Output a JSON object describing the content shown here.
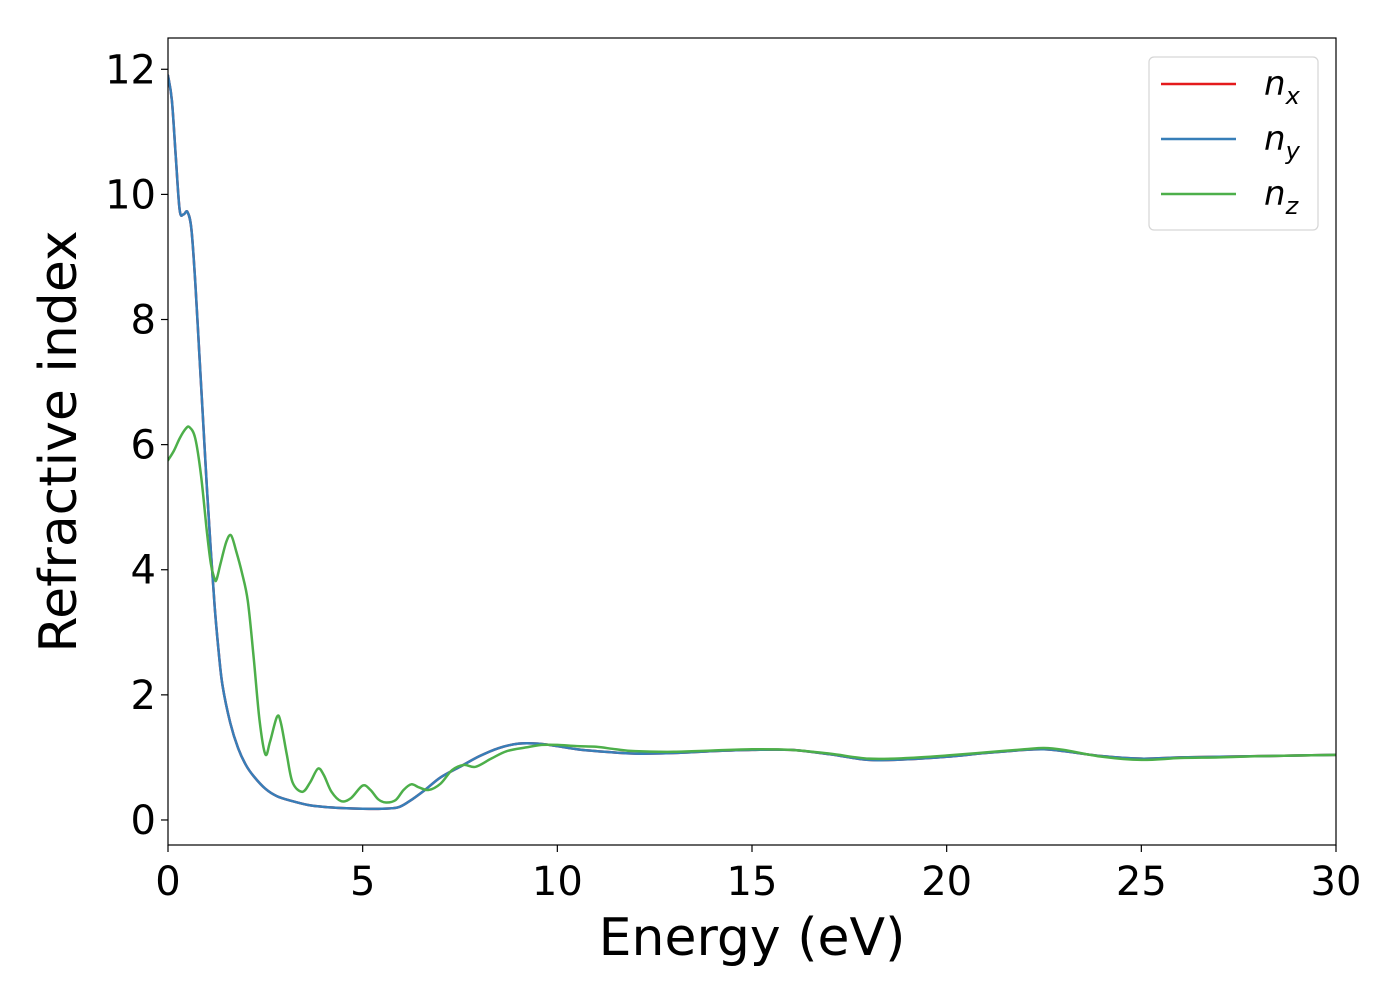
{
  "chart_data": {
    "type": "line",
    "xlabel": "Energy (eV)",
    "ylabel": "Refractive index",
    "xlim": [
      0,
      30
    ],
    "ylim": [
      -0.4,
      12.5
    ],
    "xticks": [
      0,
      5,
      10,
      15,
      20,
      25,
      30
    ],
    "xtick_labels": [
      "0",
      "5",
      "10",
      "15",
      "20",
      "25",
      "30"
    ],
    "yticks": [
      0,
      2,
      4,
      6,
      8,
      10,
      12
    ],
    "ytick_labels": [
      "0",
      "2",
      "4",
      "6",
      "8",
      "10",
      "12"
    ],
    "grid": false,
    "legend": {
      "placement": "top-right"
    },
    "series": [
      {
        "name": "n_x",
        "label_base": "n",
        "label_sub": "x",
        "color": "#e41a1c",
        "x": [
          0,
          0.1,
          0.2,
          0.3,
          0.4,
          0.5,
          0.6,
          0.7,
          0.8,
          0.9,
          1.0,
          1.1,
          1.2,
          1.3,
          1.4,
          1.6,
          1.8,
          2.0,
          2.2,
          2.5,
          2.8,
          3.2,
          3.6,
          4.0,
          4.5,
          5.0,
          5.5,
          5.9,
          6.2,
          6.6,
          7.0,
          7.5,
          8.0,
          8.5,
          9.0,
          9.5,
          10,
          10.5,
          11,
          12,
          13,
          14,
          15,
          16,
          17,
          18,
          19,
          20,
          21,
          22,
          22.5,
          23,
          24,
          25,
          26,
          27,
          28,
          29,
          30
        ],
        "values": [
          11.9,
          11.5,
          10.6,
          9.75,
          9.68,
          9.72,
          9.45,
          8.6,
          7.5,
          6.4,
          5.3,
          4.3,
          3.4,
          2.7,
          2.15,
          1.55,
          1.15,
          0.88,
          0.7,
          0.5,
          0.38,
          0.3,
          0.24,
          0.21,
          0.19,
          0.18,
          0.18,
          0.2,
          0.3,
          0.48,
          0.68,
          0.85,
          1.02,
          1.15,
          1.22,
          1.22,
          1.18,
          1.13,
          1.1,
          1.06,
          1.07,
          1.1,
          1.12,
          1.12,
          1.05,
          0.96,
          0.97,
          1.01,
          1.07,
          1.12,
          1.13,
          1.1,
          1.02,
          0.98,
          1.0,
          1.01,
          1.02,
          1.03,
          1.04
        ]
      },
      {
        "name": "n_y",
        "label_base": "n",
        "label_sub": "y",
        "color": "#377eb8",
        "x": [
          0,
          0.1,
          0.2,
          0.3,
          0.4,
          0.5,
          0.6,
          0.7,
          0.8,
          0.9,
          1.0,
          1.1,
          1.2,
          1.3,
          1.4,
          1.6,
          1.8,
          2.0,
          2.2,
          2.5,
          2.8,
          3.2,
          3.6,
          4.0,
          4.5,
          5.0,
          5.5,
          5.9,
          6.2,
          6.6,
          7.0,
          7.5,
          8.0,
          8.5,
          9.0,
          9.5,
          10,
          10.5,
          11,
          12,
          13,
          14,
          15,
          16,
          17,
          18,
          19,
          20,
          21,
          22,
          22.5,
          23,
          24,
          25,
          26,
          27,
          28,
          29,
          30
        ],
        "values": [
          11.9,
          11.5,
          10.6,
          9.75,
          9.68,
          9.72,
          9.45,
          8.6,
          7.5,
          6.4,
          5.3,
          4.3,
          3.4,
          2.7,
          2.15,
          1.55,
          1.15,
          0.88,
          0.7,
          0.5,
          0.38,
          0.3,
          0.24,
          0.21,
          0.19,
          0.18,
          0.18,
          0.2,
          0.3,
          0.48,
          0.68,
          0.85,
          1.02,
          1.15,
          1.22,
          1.22,
          1.18,
          1.13,
          1.1,
          1.06,
          1.07,
          1.1,
          1.12,
          1.12,
          1.05,
          0.96,
          0.97,
          1.01,
          1.07,
          1.12,
          1.13,
          1.1,
          1.02,
          0.98,
          1.0,
          1.01,
          1.02,
          1.03,
          1.04
        ]
      },
      {
        "name": "n_z",
        "label_base": "n",
        "label_sub": "z",
        "color": "#4daf4a",
        "x": [
          0,
          0.15,
          0.3,
          0.45,
          0.55,
          0.7,
          0.85,
          1.0,
          1.1,
          1.2,
          1.25,
          1.35,
          1.5,
          1.62,
          1.75,
          1.9,
          2.05,
          2.2,
          2.35,
          2.5,
          2.62,
          2.8,
          2.9,
          3.05,
          3.2,
          3.45,
          3.65,
          3.85,
          4.0,
          4.2,
          4.45,
          4.7,
          5.0,
          5.2,
          5.4,
          5.6,
          5.85,
          6.05,
          6.25,
          6.45,
          6.7,
          7.0,
          7.3,
          7.6,
          7.9,
          8.3,
          8.7,
          9.2,
          9.6,
          10,
          10.5,
          11,
          11.5,
          12,
          13,
          14,
          15,
          16,
          17,
          18,
          19,
          20,
          21,
          22,
          22.5,
          23,
          24,
          25,
          26,
          27,
          28,
          29,
          30
        ],
        "values": [
          5.75,
          5.9,
          6.1,
          6.25,
          6.28,
          6.1,
          5.5,
          4.6,
          4.1,
          3.85,
          3.85,
          4.1,
          4.45,
          4.55,
          4.3,
          3.95,
          3.5,
          2.6,
          1.6,
          1.05,
          1.25,
          1.65,
          1.55,
          1.05,
          0.6,
          0.45,
          0.6,
          0.82,
          0.72,
          0.45,
          0.3,
          0.35,
          0.55,
          0.48,
          0.33,
          0.28,
          0.32,
          0.48,
          0.57,
          0.52,
          0.48,
          0.58,
          0.8,
          0.88,
          0.85,
          0.98,
          1.1,
          1.16,
          1.2,
          1.2,
          1.18,
          1.17,
          1.13,
          1.1,
          1.09,
          1.11,
          1.13,
          1.12,
          1.06,
          0.98,
          0.99,
          1.03,
          1.08,
          1.13,
          1.15,
          1.12,
          1.01,
          0.96,
          0.99,
          1.0,
          1.02,
          1.03,
          1.04
        ]
      }
    ]
  }
}
